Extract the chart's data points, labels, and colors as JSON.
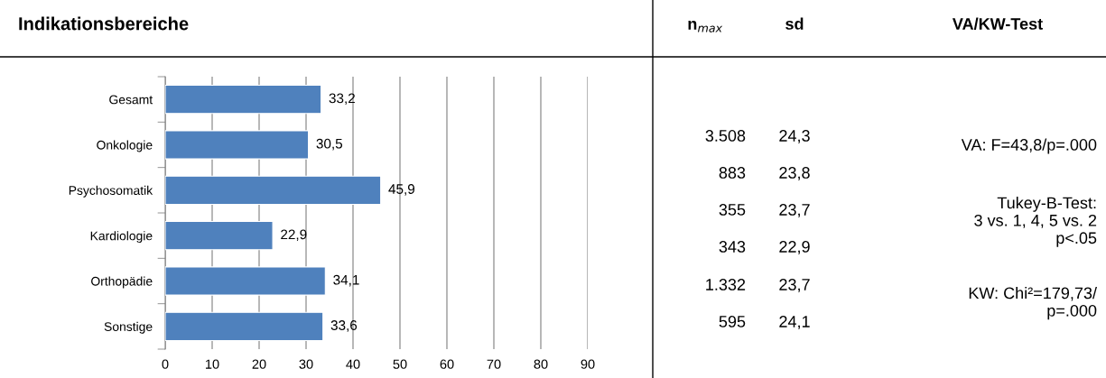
{
  "chart_data": {
    "type": "bar",
    "orientation": "horizontal",
    "title": "Indikationsbereiche",
    "categories": [
      "Gesamt",
      "Onkologie",
      "Psychosomatik",
      "Kardiologie",
      "Orthopädie",
      "Sonstige"
    ],
    "values": [
      33.2,
      30.5,
      45.9,
      22.9,
      34.1,
      33.6
    ],
    "value_labels": [
      "33,2",
      "30,5",
      "45,9",
      "22,9",
      "34,1",
      "33,6"
    ],
    "color": "#4f81bd",
    "xlim": [
      0,
      90
    ],
    "xticks": [
      0,
      10,
      20,
      30,
      40,
      50,
      60,
      70,
      80,
      90
    ],
    "grid": "x",
    "annotations": [
      "n$_{max}$",
      "sd",
      "VA/KW-Test",
      "3.508",
      "883",
      "355",
      "343",
      "1.332",
      "595",
      "24,3",
      "23,8",
      "23,7",
      "22,9",
      "23,7",
      "24,1",
      "VA: F=43,8/p=.000",
      "Tukey-B-Test:\n3 vs. 1, 4, 5 vs. 2\np<.05",
      "KW: Chi²=179,73/\np=.000"
    ]
  }
}
